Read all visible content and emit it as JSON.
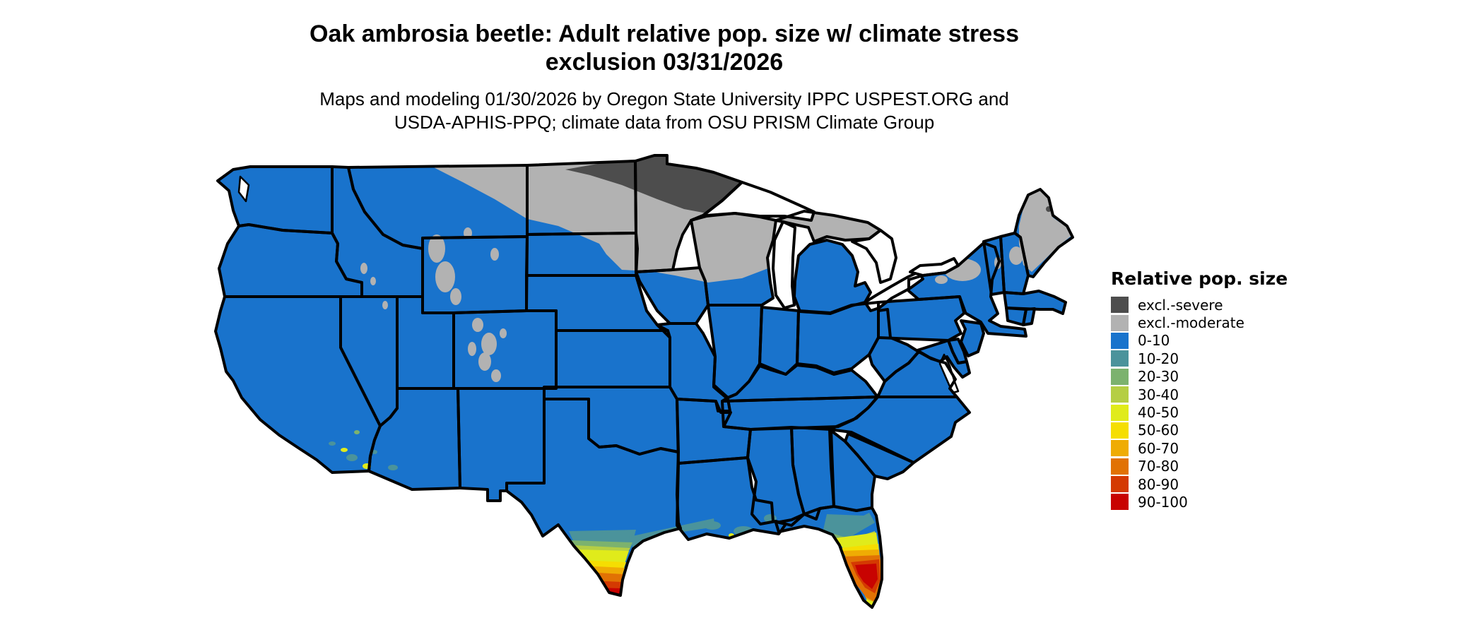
{
  "title": {
    "line1": "Oak ambrosia beetle: Adult relative pop. size w/ climate stress",
    "line2": "exclusion 03/31/2026"
  },
  "subtitle": {
    "line1": "Maps and modeling 01/30/2026 by Oregon State University IPPC USPEST.ORG and",
    "line2": "USDA-APHIS-PPQ; climate data from OSU PRISM Climate Group"
  },
  "legend": {
    "title": "Relative pop. size",
    "items": [
      {
        "label": "excl.-severe",
        "color": "#4D4D4D"
      },
      {
        "label": "excl.-moderate",
        "color": "#B2B2B2"
      },
      {
        "label": "0-10",
        "color": "#1973CC"
      },
      {
        "label": "10-20",
        "color": "#4B939B"
      },
      {
        "label": "20-30",
        "color": "#7CB26E"
      },
      {
        "label": "30-40",
        "color": "#B5CE44"
      },
      {
        "label": "40-50",
        "color": "#E0EB1B"
      },
      {
        "label": "50-60",
        "color": "#F5DE02"
      },
      {
        "label": "60-70",
        "color": "#EFAC04"
      },
      {
        "label": "70-80",
        "color": "#E17204"
      },
      {
        "label": "80-90",
        "color": "#D43A02"
      },
      {
        "label": "90-100",
        "color": "#C80301"
      }
    ]
  },
  "map": {
    "background": "#FFFFFF",
    "border_color": "#000000",
    "palette": {
      "severe": "#4D4D4D",
      "moderate": "#B2B2B2",
      "b0": "#1973CC",
      "b10": "#4B939B",
      "b20": "#7CB26E",
      "b30": "#B5CE44",
      "b40": "#E0EB1B",
      "b50": "#F5DE02",
      "b60": "#EFAC04",
      "b70": "#E17204",
      "b80": "#D43A02",
      "b90": "#C80301",
      "water": "#FFFFFF"
    }
  }
}
